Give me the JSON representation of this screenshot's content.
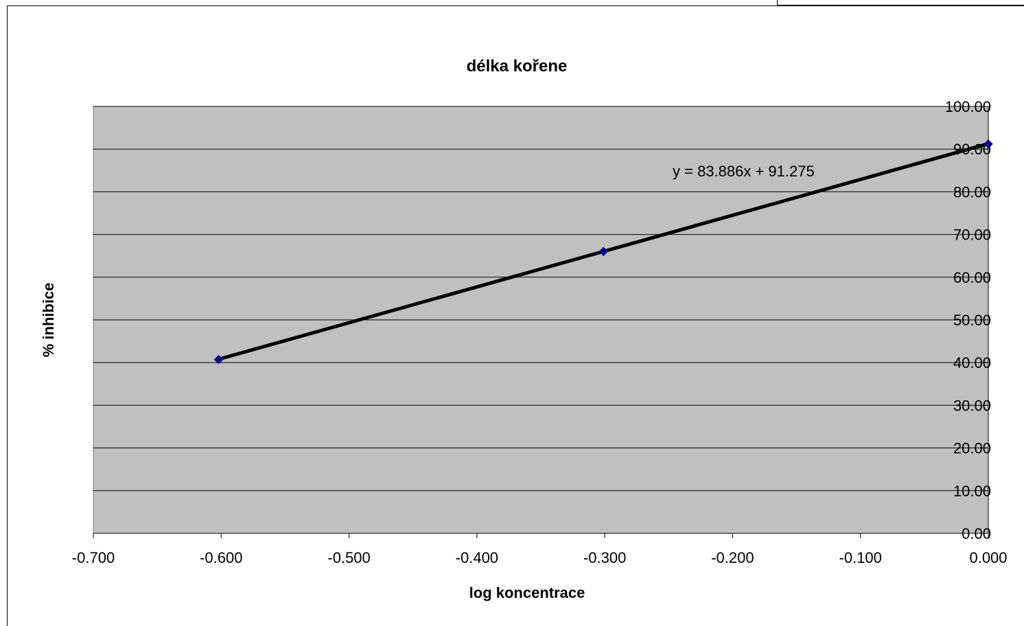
{
  "chart_data": {
    "type": "scatter",
    "title": "délka kořene",
    "xlabel": "log koncentrace",
    "ylabel": "% inhibice",
    "xlim": [
      -0.7,
      0.0
    ],
    "ylim": [
      0,
      100
    ],
    "x_ticks": [
      "-0.700",
      "-0.600",
      "-0.500",
      "-0.400",
      "-0.300",
      "-0.200",
      "-0.100",
      "0.000"
    ],
    "y_ticks": [
      "0.00",
      "10.00",
      "20.00",
      "30.00",
      "40.00",
      "50.00",
      "60.00",
      "70.00",
      "80.00",
      "90.00",
      "100.00"
    ],
    "grid": true,
    "y_axis_position": "right at x=0",
    "plot_background": "#c0c0c0",
    "marker_color": "#000080",
    "trendline_color": "#000000",
    "series": [
      {
        "x": [
          -0.602,
          -0.301,
          0.0
        ],
        "y": [
          40.7,
          66.0,
          91.2
        ]
      }
    ],
    "trendline": {
      "slope": 83.886,
      "intercept": 91.275,
      "x_range": [
        -0.602,
        0.0
      ],
      "equation_label": "y = 83.886x + 91.275"
    }
  }
}
